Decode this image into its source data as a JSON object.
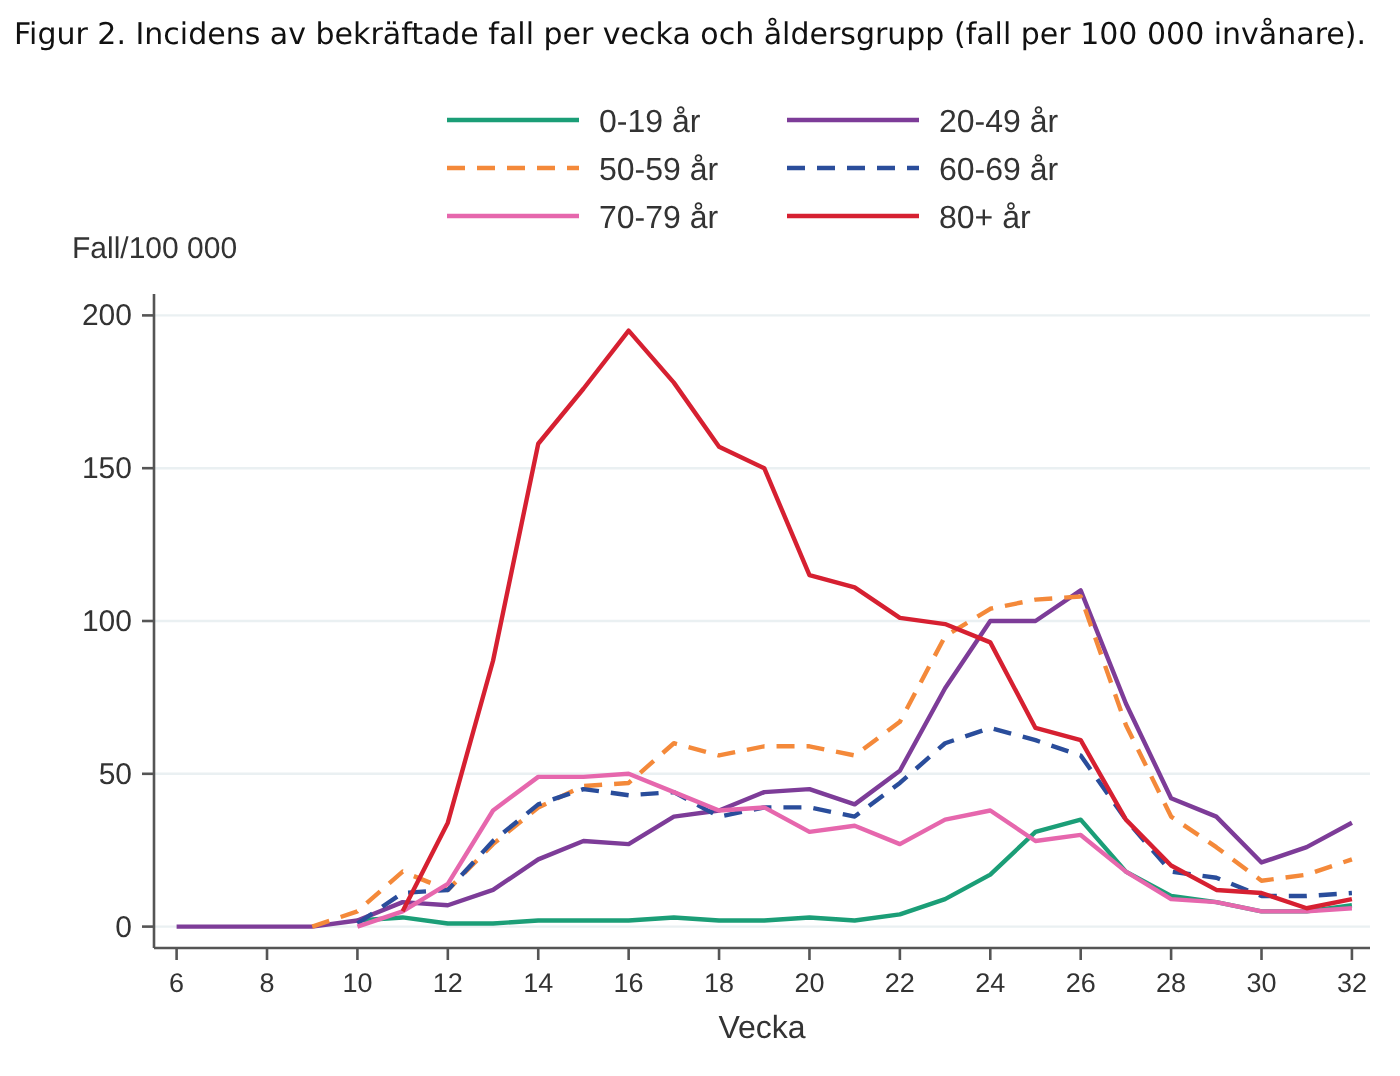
{
  "chart_data": {
    "type": "line",
    "title": "Figur 2. Incidens av bekräftade fall per vecka och åldersgrupp (fall per 100 000 invånare).",
    "xlabel": "Vecka",
    "ylabel": "Fall/100 000",
    "x": [
      6,
      7,
      8,
      9,
      10,
      11,
      12,
      13,
      14,
      15,
      16,
      17,
      18,
      19,
      20,
      21,
      22,
      23,
      24,
      25,
      26,
      27,
      28,
      29,
      30,
      31,
      32
    ],
    "xlim": [
      5.5,
      32.4
    ],
    "xticks": [
      6,
      8,
      10,
      12,
      14,
      16,
      18,
      20,
      22,
      24,
      26,
      28,
      30,
      32
    ],
    "ylim": [
      -7,
      207
    ],
    "yticks": [
      0,
      50,
      100,
      150,
      200
    ],
    "grid": "y",
    "legend": "top",
    "series": [
      {
        "name": "0-19 år",
        "color": "#1b9e77",
        "line_style": "solid",
        "values": [
          null,
          null,
          null,
          null,
          2,
          3,
          1,
          1,
          2,
          2,
          2,
          3,
          2,
          2,
          3,
          2,
          4,
          9,
          17,
          31,
          35,
          18,
          10,
          8,
          5,
          5,
          7
        ]
      },
      {
        "name": "20-49 år",
        "color": "#7d3c98",
        "line_style": "solid",
        "values": [
          0,
          0,
          0,
          0,
          2,
          8,
          7,
          12,
          22,
          28,
          27,
          36,
          38,
          44,
          45,
          40,
          51,
          78,
          100,
          100,
          110,
          73,
          42,
          36,
          21,
          26,
          34
        ]
      },
      {
        "name": "50-59 år",
        "color": "#f4893a",
        "line_style": "dashed",
        "values": [
          null,
          null,
          null,
          0,
          5,
          18,
          12,
          27,
          39,
          46,
          47,
          60,
          56,
          59,
          59,
          56,
          67,
          95,
          104,
          107,
          108,
          66,
          36,
          26,
          15,
          17,
          22
        ]
      },
      {
        "name": "60-69 år",
        "color": "#2a4d9b",
        "line_style": "dashed",
        "values": [
          null,
          null,
          null,
          null,
          1,
          11,
          12,
          28,
          40,
          45,
          43,
          44,
          36,
          39,
          39,
          36,
          47,
          60,
          65,
          61,
          56,
          35,
          18,
          16,
          10,
          10,
          11
        ]
      },
      {
        "name": "70-79 år",
        "color": "#e667ad",
        "line_style": "solid",
        "values": [
          null,
          null,
          null,
          null,
          0,
          5,
          14,
          38,
          49,
          49,
          50,
          44,
          38,
          39,
          31,
          33,
          27,
          35,
          38,
          28,
          30,
          18,
          9,
          8,
          5,
          5,
          6
        ]
      },
      {
        "name": "80+ år",
        "color": "#d62031",
        "line_style": "solid",
        "values": [
          null,
          null,
          null,
          null,
          null,
          5,
          34,
          87,
          158,
          176,
          195,
          178,
          157,
          150,
          115,
          111,
          101,
          99,
          93,
          65,
          61,
          35,
          20,
          12,
          11,
          6,
          9
        ]
      }
    ]
  }
}
